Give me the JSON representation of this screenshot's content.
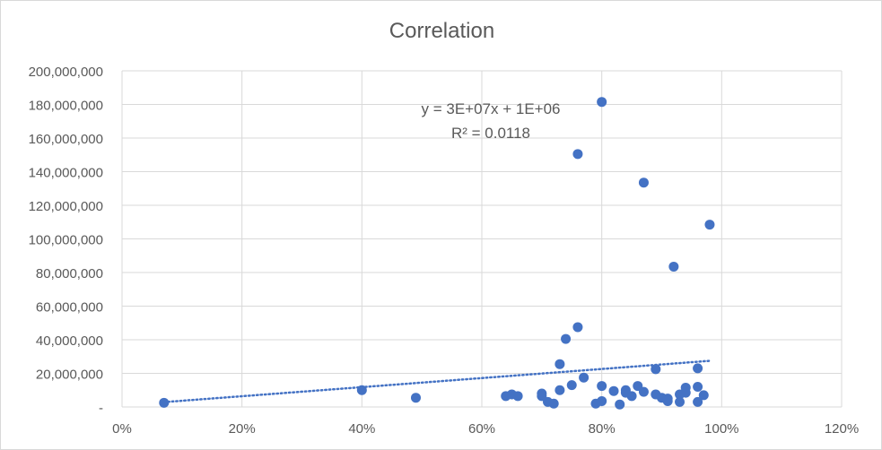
{
  "chart_data": {
    "type": "scatter",
    "title": "Correlation",
    "xlabel": "",
    "ylabel": "",
    "xlim": [
      0,
      1.2
    ],
    "ylim": [
      0,
      200000000
    ],
    "x_ticks": [
      "0%",
      "20%",
      "40%",
      "60%",
      "80%",
      "100%",
      "120%"
    ],
    "y_ticks": [
      "-",
      "20,000,000",
      "40,000,000",
      "60,000,000",
      "80,000,000",
      "100,000,000",
      "120,000,000",
      "140,000,000",
      "160,000,000",
      "180,000,000",
      "200,000,000"
    ],
    "grid": true,
    "legend": "none",
    "series": [
      {
        "color": "#4472c4",
        "x": [
          0.07,
          0.4,
          0.49,
          0.64,
          0.65,
          0.66,
          0.7,
          0.7,
          0.71,
          0.72,
          0.73,
          0.73,
          0.74,
          0.75,
          0.76,
          0.76,
          0.77,
          0.79,
          0.8,
          0.8,
          0.8,
          0.82,
          0.83,
          0.84,
          0.84,
          0.85,
          0.86,
          0.87,
          0.87,
          0.89,
          0.89,
          0.9,
          0.91,
          0.91,
          0.92,
          0.93,
          0.93,
          0.94,
          0.94,
          0.96,
          0.96,
          0.96,
          0.97,
          0.98
        ],
        "y": [
          2500000,
          10000000,
          5500000,
          6500000,
          7500000,
          6500000,
          8000000,
          6500000,
          3000000,
          2000000,
          25500000,
          10000000,
          40500000,
          13000000,
          150500000,
          47500000,
          17500000,
          2000000,
          181500000,
          12500000,
          3500000,
          9500000,
          1500000,
          10000000,
          8500000,
          6500000,
          12500000,
          9000000,
          133500000,
          22500000,
          7500000,
          5500000,
          5000000,
          3500000,
          83500000,
          7500000,
          3000000,
          11500000,
          8500000,
          23000000,
          12000000,
          3000000,
          7000000,
          108500000
        ]
      }
    ],
    "trendline": {
      "type": "linear",
      "color": "#4472c4",
      "style": "dotted",
      "slope": 27000000,
      "intercept": 1000000,
      "x_range": [
        0.07,
        0.98
      ],
      "equation_label": "y = 3E+07x + 1E+06",
      "r2_label": "R² = 0.0118"
    }
  }
}
